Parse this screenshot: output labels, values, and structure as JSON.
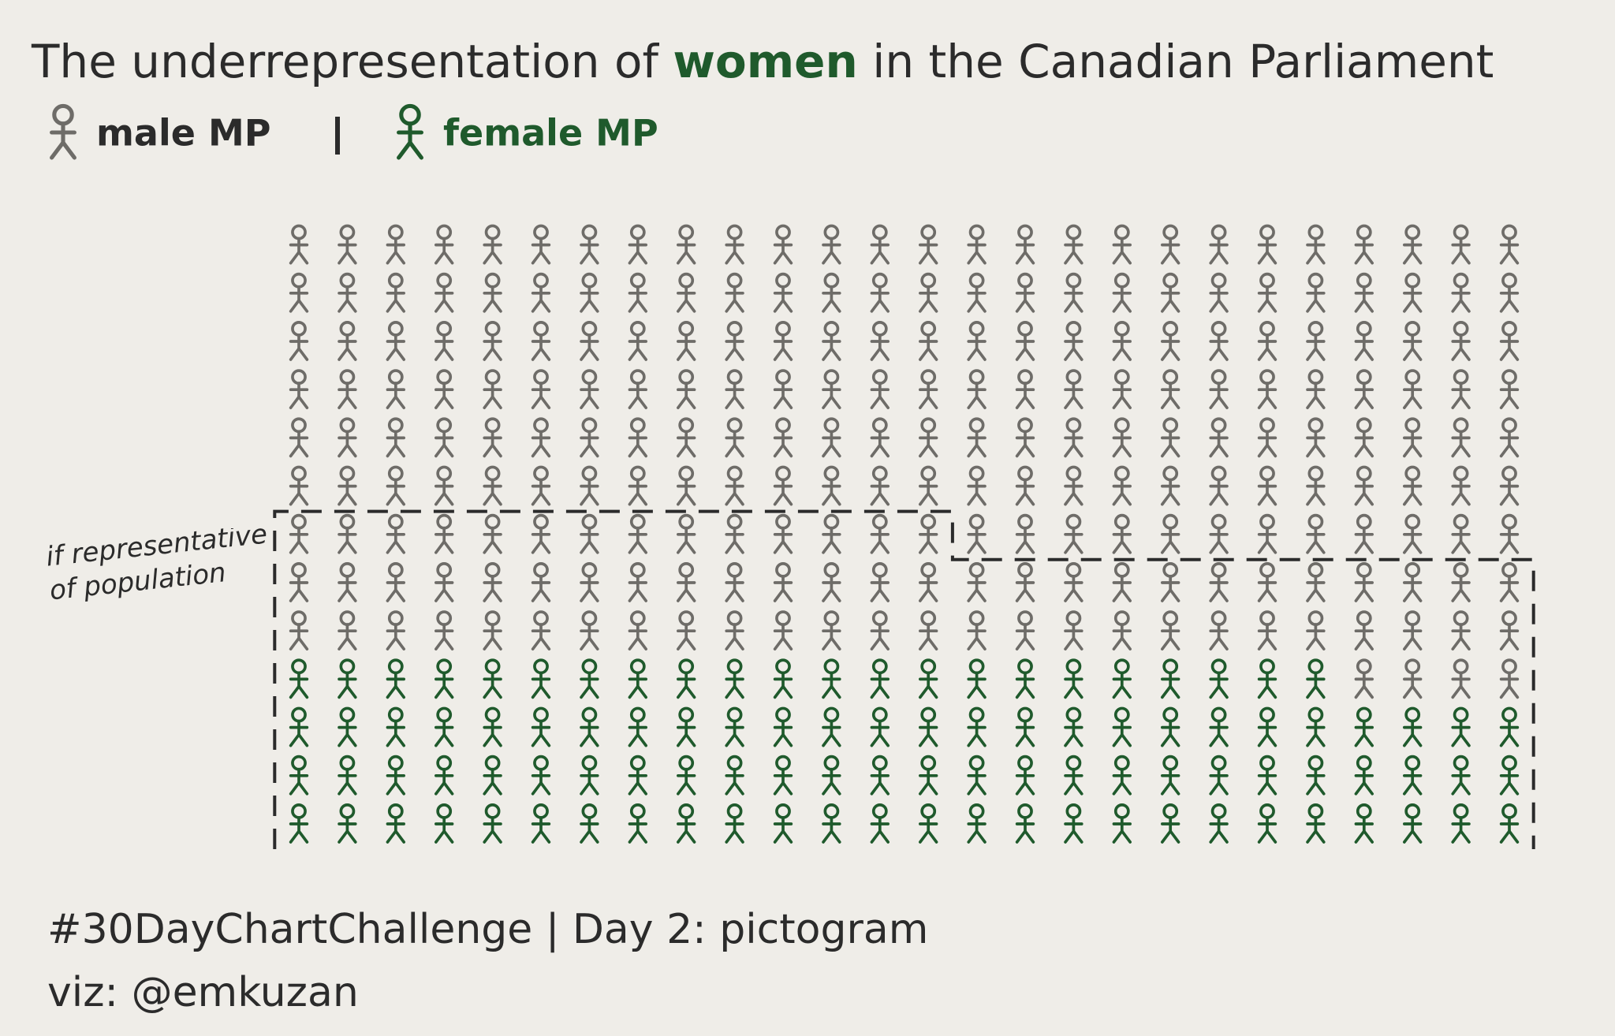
{
  "chart_data": {
    "type": "pictogram",
    "title_parts": [
      "The underrepresentation of ",
      "women",
      " in the Canadian Parliament"
    ],
    "series": [
      {
        "name": "male MP",
        "color": "#6e6c68",
        "value": 238
      },
      {
        "name": "female MP",
        "color": "#1f5a2c",
        "value": 100
      }
    ],
    "reference": {
      "label": "if representative of population",
      "value": 170
    },
    "caption": "#30DayChartChallenge | Day 2: pictogram",
    "credit": "viz: @emkuzan"
  }
}
